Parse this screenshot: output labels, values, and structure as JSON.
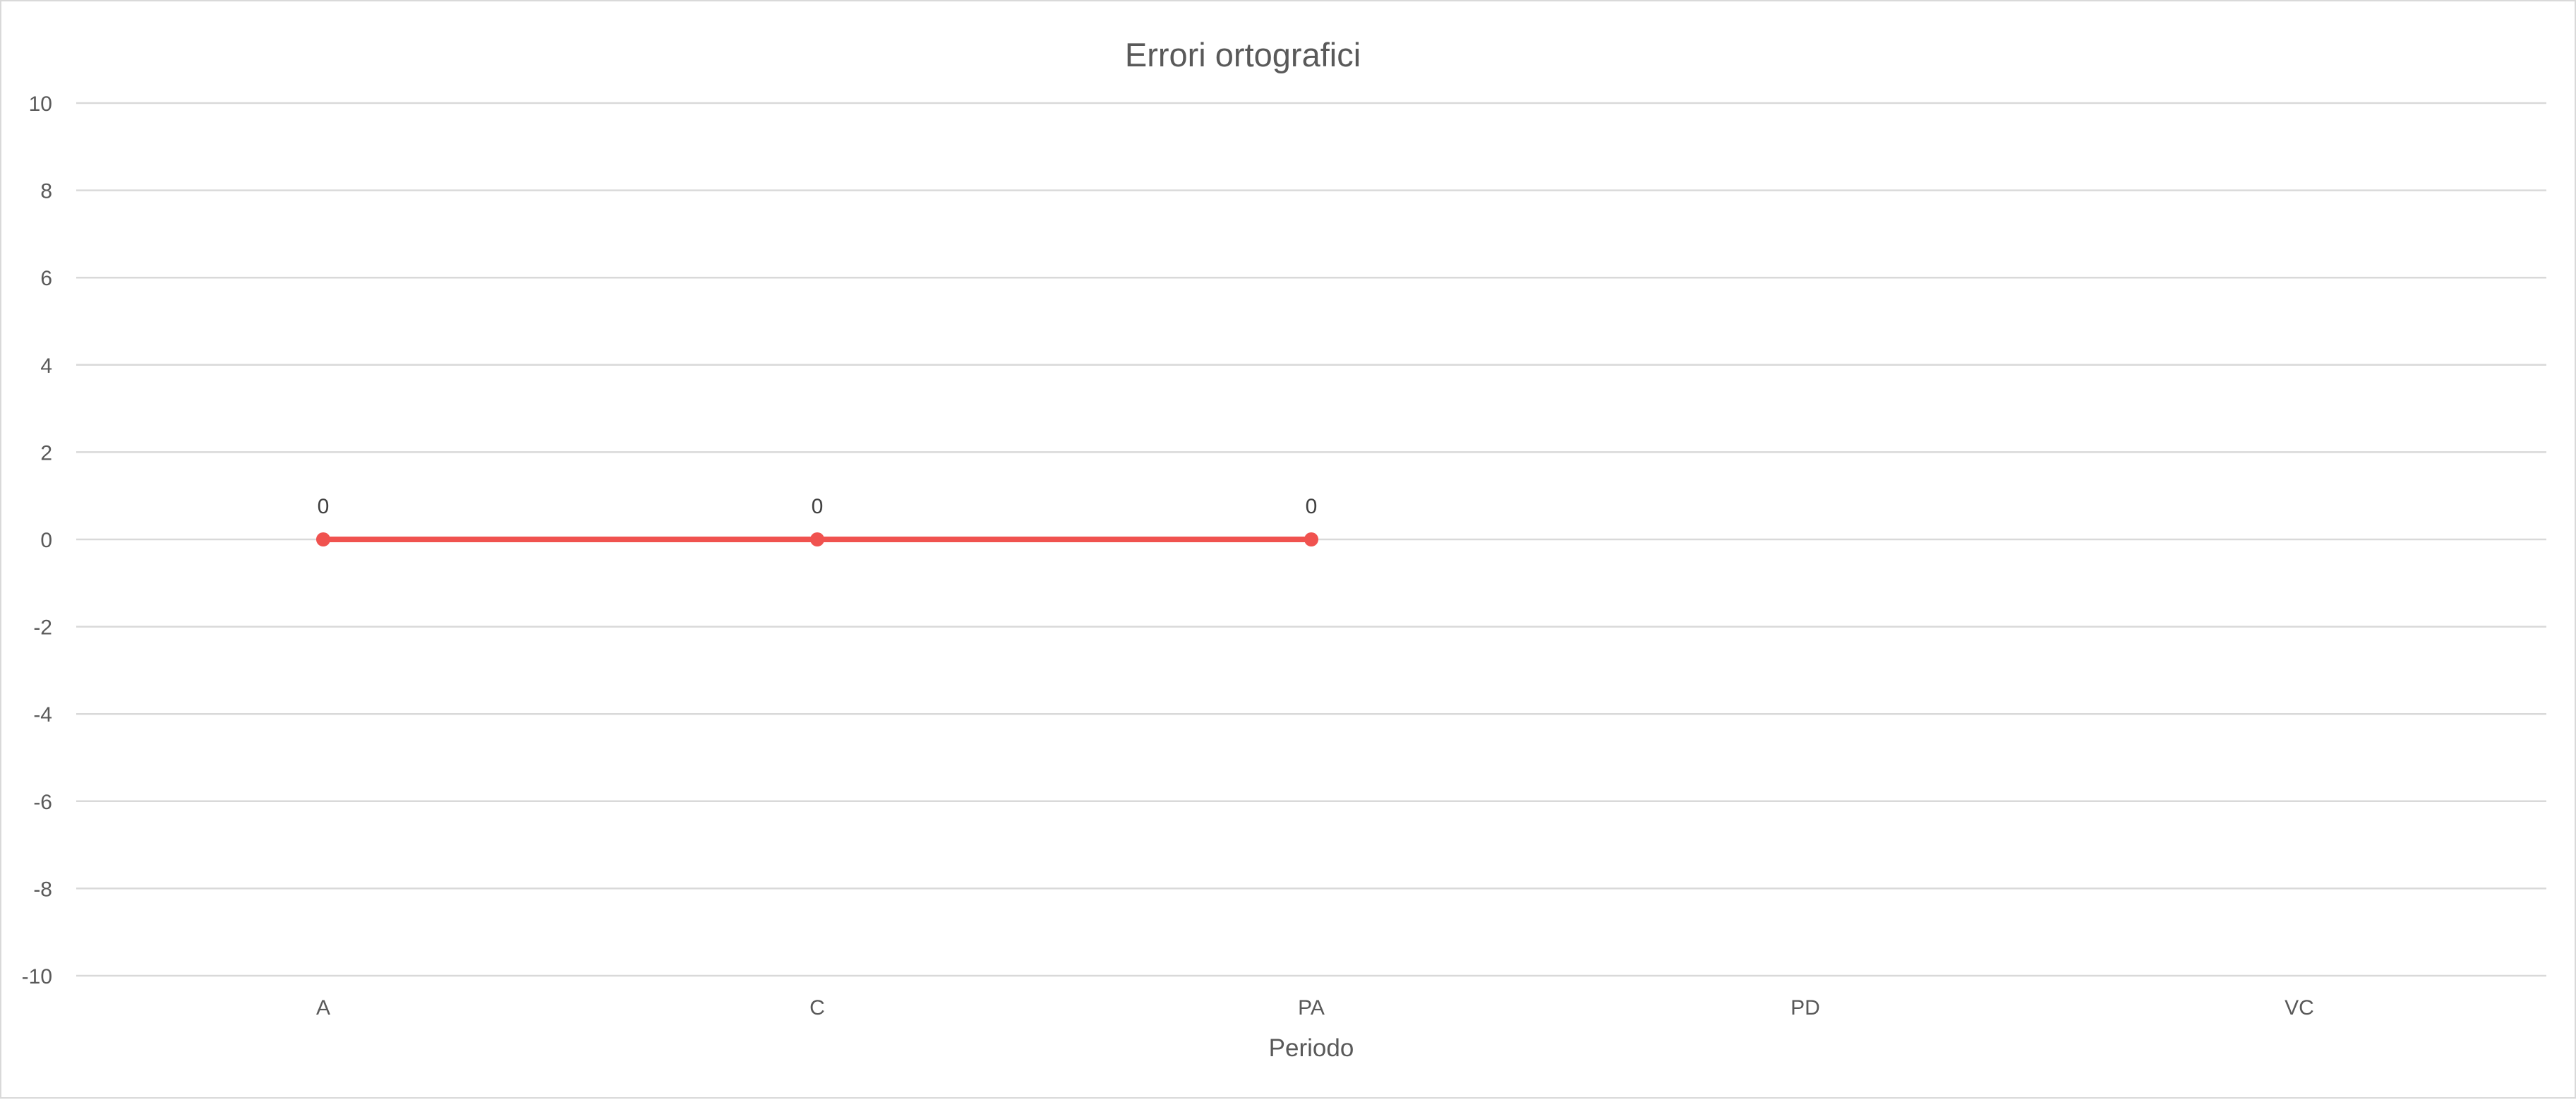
{
  "chart_data": {
    "type": "line",
    "title": "Errori ortografici",
    "xlabel": "Periodo",
    "ylabel": "",
    "categories": [
      "A",
      "C",
      "PA",
      "PD",
      "VC"
    ],
    "series": [
      {
        "values": [
          0,
          0,
          0,
          null,
          null
        ],
        "color": "#f0524f",
        "data_labels": true
      }
    ],
    "ylim": [
      -10,
      10
    ],
    "y_ticks": [
      "10",
      "8",
      "6",
      "4",
      "2",
      "0",
      "-2",
      "-4",
      "-6",
      "-8",
      "-10"
    ],
    "grid": true,
    "legend": "none"
  }
}
